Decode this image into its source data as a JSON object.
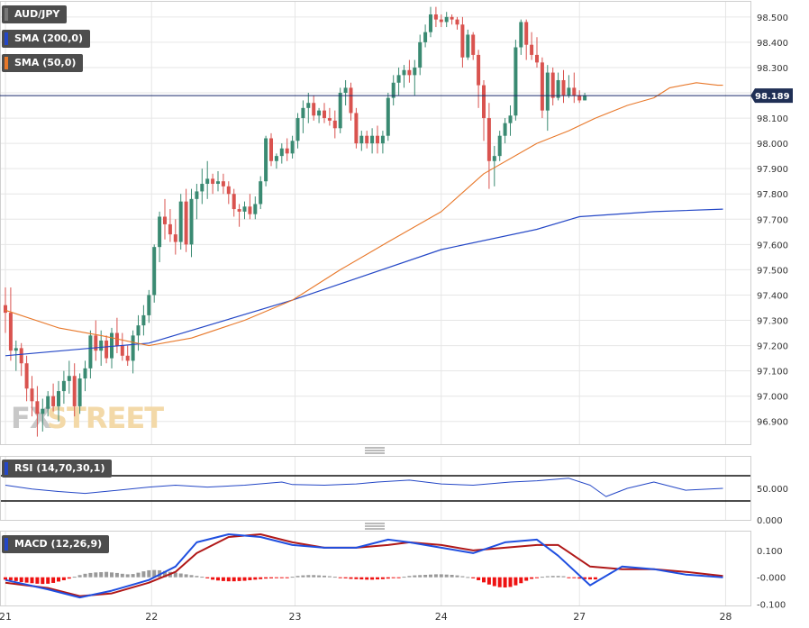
{
  "legend": {
    "symbol": "AUD/JPY",
    "sma200": "SMA (200,0)",
    "sma50": "SMA (50,0)",
    "rsi": "RSI (14,70,30,1)",
    "macd": "MACD (12,26,9)"
  },
  "watermark": {
    "part1": "FX",
    "part2": "STREET"
  },
  "colors": {
    "up": "#3a8a72",
    "down": "#d9534f",
    "sma200": "#2447c6",
    "sma50": "#e8782a",
    "macd_line": "#1f4fe0",
    "signal_line": "#b01818",
    "hist_pos": "#999999",
    "hist_neg": "#ee1111",
    "grid": "#e6e6e6",
    "current_line": "#1a2a6c",
    "current_tag": "#1f2f55"
  },
  "current_price": 98.189,
  "current_price_label": "98.189",
  "chart_data": [
    {
      "type": "candlestick",
      "title": "AUD/JPY",
      "ylim": [
        96.81,
        98.56
      ],
      "y_ticks": [
        "98.500",
        "98.400",
        "98.300",
        "98.200",
        "98.100",
        "98.000",
        "97.900",
        "97.800",
        "97.700",
        "97.600",
        "97.500",
        "97.400",
        "97.300",
        "97.200",
        "97.100",
        "97.000",
        "96.900"
      ],
      "x_tick_labels": [
        "21",
        "22",
        "23",
        "24",
        "27",
        "28"
      ],
      "x_tick_index": [
        0,
        27.5,
        54.5,
        82,
        108,
        135.5
      ],
      "candles": [
        [
          97.36,
          97.43,
          97.25,
          97.33
        ],
        [
          97.33,
          97.43,
          97.14,
          97.18
        ],
        [
          97.18,
          97.22,
          97.1,
          97.19
        ],
        [
          97.19,
          97.21,
          97.08,
          97.13
        ],
        [
          97.13,
          97.16,
          96.98,
          97.03
        ],
        [
          97.03,
          97.08,
          96.92,
          96.98
        ],
        [
          96.98,
          97.04,
          96.84,
          96.93
        ],
        [
          96.93,
          96.99,
          96.86,
          96.95
        ],
        [
          96.95,
          97.02,
          96.92,
          97.0
        ],
        [
          97.0,
          97.05,
          96.94,
          96.96
        ],
        [
          96.96,
          97.06,
          96.9,
          97.02
        ],
        [
          97.02,
          97.1,
          96.97,
          97.06
        ],
        [
          97.06,
          97.14,
          97.01,
          97.08
        ],
        [
          97.08,
          97.13,
          96.92,
          96.96
        ],
        [
          96.96,
          97.09,
          96.93,
          97.07
        ],
        [
          97.07,
          97.14,
          97.02,
          97.11
        ],
        [
          97.11,
          97.26,
          97.07,
          97.24
        ],
        [
          97.24,
          97.3,
          97.14,
          97.18
        ],
        [
          97.18,
          97.26,
          97.12,
          97.22
        ],
        [
          97.22,
          97.24,
          97.13,
          97.15
        ],
        [
          97.15,
          97.27,
          97.11,
          97.25
        ],
        [
          97.25,
          97.31,
          97.17,
          97.2
        ],
        [
          97.2,
          97.25,
          97.14,
          97.16
        ],
        [
          97.16,
          97.2,
          97.12,
          97.14
        ],
        [
          97.14,
          97.26,
          97.09,
          97.24
        ],
        [
          97.24,
          97.32,
          97.18,
          97.28
        ],
        [
          97.28,
          97.36,
          97.24,
          97.32
        ],
        [
          97.32,
          97.42,
          97.29,
          97.4
        ],
        [
          97.4,
          97.6,
          97.37,
          97.59
        ],
        [
          97.59,
          97.73,
          97.53,
          97.71
        ],
        [
          97.71,
          97.78,
          97.62,
          97.68
        ],
        [
          97.68,
          97.74,
          97.61,
          97.64
        ],
        [
          97.64,
          97.7,
          97.56,
          97.61
        ],
        [
          97.61,
          97.8,
          97.58,
          97.77
        ],
        [
          97.77,
          97.82,
          97.57,
          97.6
        ],
        [
          97.6,
          97.82,
          97.55,
          97.78
        ],
        [
          97.78,
          97.84,
          97.7,
          97.81
        ],
        [
          97.81,
          97.9,
          97.76,
          97.84
        ],
        [
          97.84,
          97.93,
          97.78,
          97.86
        ],
        [
          97.86,
          97.88,
          97.8,
          97.84
        ],
        [
          97.84,
          97.89,
          97.81,
          97.85
        ],
        [
          97.85,
          97.88,
          97.8,
          97.83
        ],
        [
          97.83,
          97.85,
          97.76,
          97.8
        ],
        [
          97.8,
          97.82,
          97.71,
          97.74
        ],
        [
          97.74,
          97.76,
          97.67,
          97.73
        ],
        [
          97.73,
          97.77,
          97.7,
          97.75
        ],
        [
          97.75,
          97.8,
          97.7,
          97.72
        ],
        [
          97.72,
          97.79,
          97.7,
          97.76
        ],
        [
          97.76,
          97.87,
          97.74,
          97.85
        ],
        [
          97.85,
          98.03,
          97.83,
          98.02
        ],
        [
          98.02,
          98.04,
          97.91,
          97.93
        ],
        [
          97.93,
          97.96,
          97.9,
          97.95
        ],
        [
          97.95,
          98.0,
          97.92,
          97.98
        ],
        [
          97.98,
          98.02,
          97.93,
          97.96
        ],
        [
          97.96,
          98.03,
          97.94,
          98.01
        ],
        [
          98.01,
          98.12,
          97.98,
          98.1
        ],
        [
          98.1,
          98.17,
          98.04,
          98.14
        ],
        [
          98.14,
          98.2,
          98.08,
          98.16
        ],
        [
          98.16,
          98.19,
          98.09,
          98.11
        ],
        [
          98.11,
          98.14,
          98.08,
          98.13
        ],
        [
          98.13,
          98.16,
          98.08,
          98.1
        ],
        [
          98.1,
          98.14,
          98.07,
          98.09
        ],
        [
          98.09,
          98.13,
          98.02,
          98.06
        ],
        [
          98.06,
          98.22,
          98.04,
          98.2
        ],
        [
          98.2,
          98.25,
          98.15,
          98.22
        ],
        [
          98.22,
          98.24,
          98.09,
          98.12
        ],
        [
          98.12,
          98.14,
          97.98,
          98.0
        ],
        [
          98.0,
          98.05,
          97.97,
          98.03
        ],
        [
          98.03,
          98.05,
          97.98,
          98.0
        ],
        [
          98.0,
          98.06,
          97.96,
          98.03
        ],
        [
          98.03,
          98.07,
          97.96,
          98.0
        ],
        [
          98.0,
          98.05,
          97.96,
          98.03
        ],
        [
          98.03,
          98.2,
          98.01,
          98.18
        ],
        [
          98.18,
          98.27,
          98.15,
          98.24
        ],
        [
          98.24,
          98.3,
          98.19,
          98.27
        ],
        [
          98.27,
          98.31,
          98.22,
          98.29
        ],
        [
          98.29,
          98.33,
          98.24,
          98.27
        ],
        [
          98.27,
          98.33,
          98.19,
          98.3
        ],
        [
          98.3,
          98.43,
          98.27,
          98.4
        ],
        [
          98.4,
          98.47,
          98.38,
          98.44
        ],
        [
          98.44,
          98.54,
          98.42,
          98.51
        ],
        [
          98.51,
          98.54,
          98.46,
          98.49
        ],
        [
          98.49,
          98.51,
          98.46,
          98.48
        ],
        [
          98.48,
          98.52,
          98.46,
          98.5
        ],
        [
          98.5,
          98.51,
          98.47,
          98.49
        ],
        [
          98.49,
          98.5,
          98.45,
          98.47
        ],
        [
          98.47,
          98.5,
          98.3,
          98.34
        ],
        [
          98.34,
          98.45,
          98.33,
          98.43
        ],
        [
          98.43,
          98.44,
          98.33,
          98.35
        ],
        [
          98.35,
          98.37,
          98.14,
          98.23
        ],
        [
          98.23,
          98.25,
          98.01,
          98.1
        ],
        [
          98.1,
          98.16,
          97.82,
          97.93
        ],
        [
          97.93,
          97.99,
          97.83,
          97.95
        ],
        [
          97.95,
          98.05,
          97.93,
          98.03
        ],
        [
          98.03,
          98.1,
          98.0,
          98.08
        ],
        [
          98.08,
          98.15,
          98.03,
          98.11
        ],
        [
          98.11,
          98.41,
          98.09,
          98.38
        ],
        [
          98.38,
          98.49,
          98.35,
          98.48
        ],
        [
          98.48,
          98.49,
          98.33,
          98.39
        ],
        [
          98.39,
          98.44,
          98.33,
          98.35
        ],
        [
          98.35,
          98.42,
          98.3,
          98.32
        ],
        [
          98.32,
          98.34,
          98.1,
          98.13
        ],
        [
          98.13,
          98.31,
          98.05,
          98.28
        ],
        [
          98.28,
          98.3,
          98.15,
          98.18
        ],
        [
          98.18,
          98.28,
          98.17,
          98.25
        ],
        [
          98.25,
          98.29,
          98.16,
          98.19
        ],
        [
          98.19,
          98.27,
          98.18,
          98.22
        ],
        [
          98.22,
          98.28,
          98.16,
          98.19
        ],
        [
          98.19,
          98.21,
          98.16,
          98.17
        ],
        [
          98.17,
          98.2,
          98.17,
          98.19
        ]
      ],
      "series": [
        {
          "name": "SMA (200,0)",
          "x": [
            0,
            27,
            54,
            82,
            100,
            108,
            122,
            135
          ],
          "values": [
            97.16,
            97.21,
            97.38,
            97.58,
            97.66,
            97.71,
            97.73,
            97.74
          ]
        },
        {
          "name": "SMA (50,0)",
          "x": [
            0,
            10,
            18,
            27,
            35,
            45,
            54,
            63,
            72,
            82,
            90,
            100,
            106,
            111,
            117,
            122,
            125,
            130,
            134,
            135
          ],
          "values": [
            97.34,
            97.27,
            97.24,
            97.2,
            97.23,
            97.3,
            97.38,
            97.5,
            97.61,
            97.73,
            97.88,
            98.0,
            98.05,
            98.1,
            98.15,
            98.18,
            98.22,
            98.24,
            98.23,
            98.23
          ]
        }
      ]
    },
    {
      "type": "line",
      "title": "RSI (14,70,30,1)",
      "ylim": [
        0,
        100
      ],
      "y_ticks": [
        "50.000",
        "0.000"
      ],
      "levels": [
        30,
        70
      ],
      "series": [
        {
          "name": "RSI (14,70,30,1)",
          "x": [
            0,
            5,
            10,
            15,
            20,
            27,
            32,
            38,
            45,
            52,
            54,
            60,
            66,
            70,
            76,
            82,
            88,
            95,
            100,
            106,
            110,
            113,
            117,
            122,
            128,
            135
          ],
          "values": [
            55,
            49,
            45,
            42,
            46,
            52,
            55,
            52,
            55,
            60,
            56,
            55,
            57,
            60,
            63,
            57,
            55,
            60,
            62,
            66,
            55,
            37,
            50,
            60,
            47,
            50
          ]
        }
      ]
    },
    {
      "type": "bar+line",
      "title": "MACD (12,26,9)",
      "ylim": [
        -0.105,
        0.17
      ],
      "y_ticks": [
        "0.100",
        "-0.000",
        "-0.100"
      ],
      "histogram": [
        -0.009,
        -0.011,
        -0.014,
        -0.018,
        -0.02,
        -0.022,
        -0.024,
        -0.025,
        -0.024,
        -0.021,
        -0.016,
        -0.011,
        -0.005,
        0.002,
        0.008,
        0.013,
        0.016,
        0.018,
        0.019,
        0.02,
        0.018,
        0.016,
        0.013,
        0.011,
        0.012,
        0.017,
        0.022,
        0.026,
        0.027,
        0.026,
        0.023,
        0.02,
        0.017,
        0.014,
        0.011,
        0.008,
        0.005,
        0.002,
        -0.004,
        -0.009,
        -0.012,
        -0.014,
        -0.015,
        -0.015,
        -0.014,
        -0.013,
        -0.011,
        -0.009,
        -0.007,
        -0.005,
        -0.004,
        -0.003,
        -0.002,
        -0.002,
        0.002,
        0.005,
        0.007,
        0.008,
        0.008,
        0.007,
        0.006,
        0.004,
        0.002,
        -0.002,
        -0.004,
        -0.006,
        -0.007,
        -0.008,
        -0.009,
        -0.009,
        -0.008,
        -0.007,
        -0.005,
        -0.003,
        -0.001,
        0.002,
        0.005,
        0.007,
        0.008,
        0.009,
        0.01,
        0.011,
        0.011,
        0.01,
        0.009,
        0.007,
        0.004,
        0.001,
        -0.004,
        -0.011,
        -0.019,
        -0.027,
        -0.033,
        -0.037,
        -0.038,
        -0.036,
        -0.03,
        -0.022,
        -0.013,
        -0.006,
        -0.001,
        0.002,
        0.004,
        0.005,
        0.005,
        0.004,
        -0.001,
        -0.003,
        -0.005,
        -0.007,
        -0.008,
        -0.008
      ],
      "series": [
        {
          "name": "MACD",
          "x": [
            0,
            8,
            14,
            20,
            27,
            32,
            36,
            42,
            48,
            54,
            60,
            66,
            72,
            76,
            82,
            88,
            94,
            100,
            104,
            110,
            116,
            122,
            128,
            135
          ],
          "values": [
            -0.01,
            -0.045,
            -0.075,
            -0.05,
            -0.01,
            0.04,
            0.13,
            0.16,
            0.15,
            0.12,
            0.11,
            0.11,
            0.14,
            0.13,
            0.11,
            0.09,
            0.13,
            0.14,
            0.08,
            -0.03,
            0.04,
            0.03,
            0.01,
            0.0
          ]
        },
        {
          "name": "Signal",
          "x": [
            0,
            8,
            14,
            20,
            27,
            32,
            36,
            42,
            48,
            54,
            60,
            66,
            72,
            76,
            82,
            88,
            94,
            100,
            104,
            110,
            116,
            122,
            128,
            135
          ],
          "values": [
            -0.02,
            -0.04,
            -0.07,
            -0.06,
            -0.02,
            0.02,
            0.09,
            0.15,
            0.16,
            0.13,
            0.11,
            0.11,
            0.12,
            0.13,
            0.12,
            0.1,
            0.11,
            0.12,
            0.12,
            0.04,
            0.03,
            0.03,
            0.02,
            0.005
          ]
        }
      ]
    }
  ]
}
